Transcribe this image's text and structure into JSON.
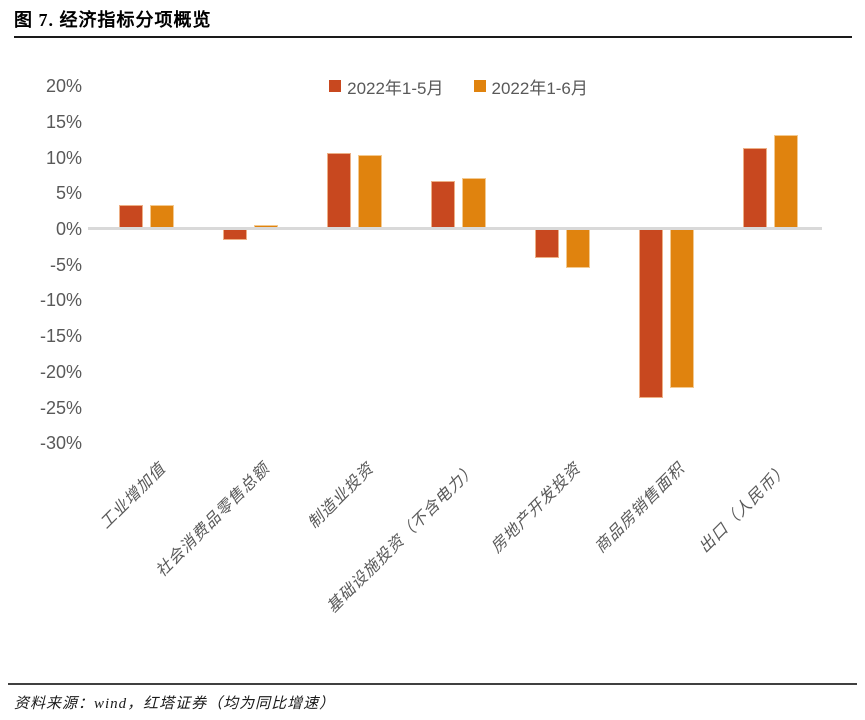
{
  "page": {
    "title": "图 7. 经济指标分项概览",
    "source_note": "资料来源：wind，红塔证券（均为同比增速）"
  },
  "chart_data": {
    "type": "bar",
    "title": "图 7. 经济指标分项概览",
    "categories": [
      "工业增加值",
      "社会消费品零售总额",
      "制造业投资",
      "基础设施投资（不含电力）",
      "房地产开发投资",
      "商品房销售面积",
      "出口（人民币）"
    ],
    "series": [
      {
        "name": "2022年1-5月",
        "color": "#C8481F",
        "border_color": "#EDAF85",
        "values": [
          3.3,
          -1.5,
          10.6,
          6.7,
          -4.0,
          -23.6,
          11.3
        ]
      },
      {
        "name": "2022年1-6月",
        "color": "#E0830E",
        "border_color": "#F3C98F",
        "values": [
          3.4,
          0.5,
          10.4,
          7.1,
          -5.4,
          -22.2,
          13.2
        ]
      }
    ],
    "ylim": [
      -30,
      20
    ],
    "ytick_step": 5,
    "yticks": [
      20,
      15,
      10,
      5,
      0,
      -5,
      -10,
      -15,
      -20,
      -25,
      -30
    ],
    "ytick_suffix": "%",
    "grid": false,
    "legend_position": "top-center",
    "axis_color": "#D9D9D9",
    "tick_label_color": "#595959",
    "xlabel": "",
    "ylabel": "",
    "source_note": "资料来源：wind，红塔证券（均为同比增速）"
  }
}
